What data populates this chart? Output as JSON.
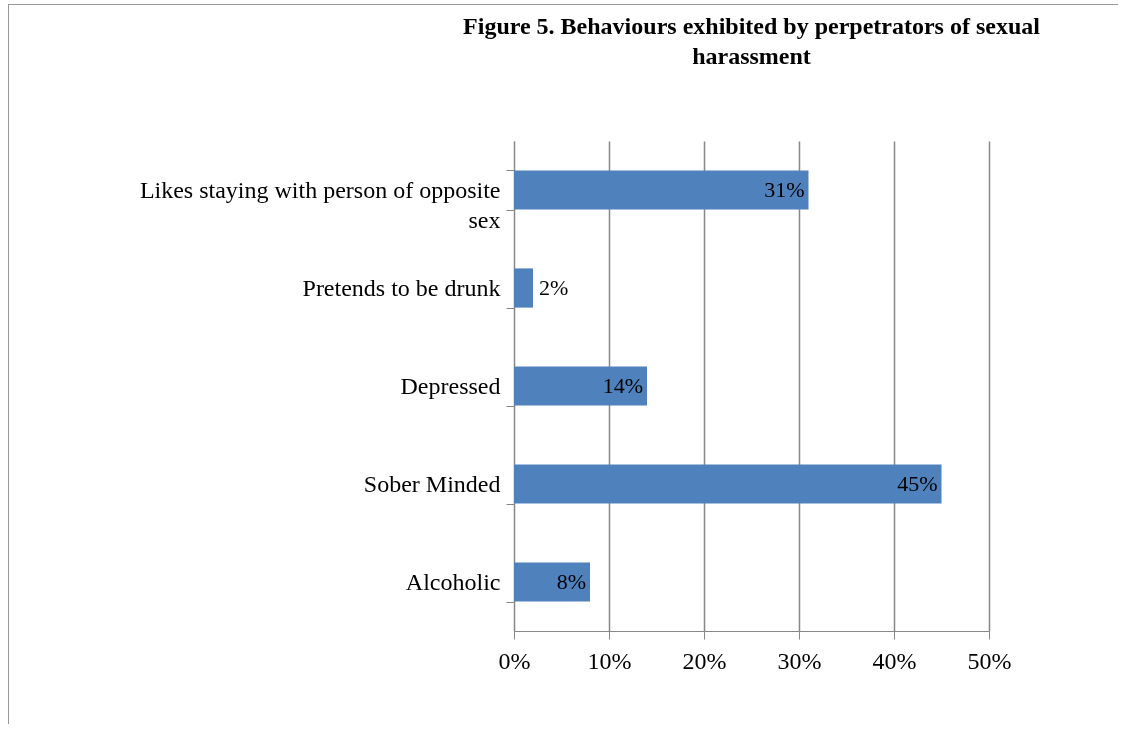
{
  "chart_data": {
    "type": "bar",
    "orientation": "horizontal",
    "title": "Figure 5. Behaviours exhibited by perpetrators of sexual harassment",
    "categories": [
      "Likes staying with person of opposite sex",
      "Pretends to be drunk",
      "Depressed",
      "Sober Minded",
      "Alcoholic"
    ],
    "values": [
      31,
      2,
      14,
      45,
      8
    ],
    "value_labels": [
      "31%",
      "2%",
      "14%",
      "45%",
      "8%"
    ],
    "color": "#4f81bd",
    "xlim": [
      0,
      50
    ],
    "xticks": [
      {
        "value": 0,
        "label": "0%"
      },
      {
        "value": 10,
        "label": "10%"
      },
      {
        "value": 20,
        "label": "20%"
      },
      {
        "value": 30,
        "label": "30%"
      },
      {
        "value": 40,
        "label": "40%"
      },
      {
        "value": 50,
        "label": "50%"
      }
    ],
    "grid": "x"
  }
}
